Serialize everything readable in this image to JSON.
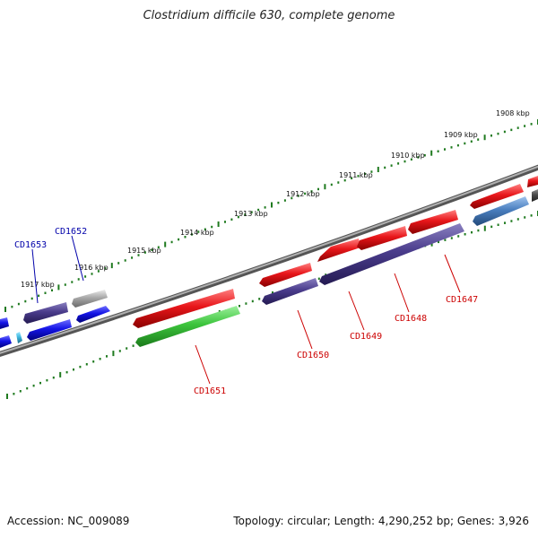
{
  "title": "Clostridium difficile 630, complete genome",
  "footer": {
    "accession": "Accession: NC_009089",
    "summary": "Topology: circular; Length: 4,290,252 bp; Genes: 3,926"
  },
  "ruler": {
    "unit": "kbp",
    "labels": [
      "1908 kbp",
      "1909 kbp",
      "1910 kbp",
      "1911 kbp",
      "1912 kbp",
      "1913 kbp",
      "1914 kbp",
      "1915 kbp",
      "1916 kbp",
      "1917 kbp"
    ]
  },
  "gene_labels": [
    {
      "text": "CD1653",
      "color": "#0000aa"
    },
    {
      "text": "CD1652",
      "color": "#0000aa"
    },
    {
      "text": "CD1651",
      "color": "#cc0000"
    },
    {
      "text": "CD1650",
      "color": "#cc0000"
    },
    {
      "text": "CD1649",
      "color": "#cc0000"
    },
    {
      "text": "CD1648",
      "color": "#cc0000"
    },
    {
      "text": "CD1647",
      "color": "#cc0000"
    }
  ],
  "colors": {
    "backbone": "#808080",
    "ticks": "#1f7a1f",
    "gene_red": "#e8161a",
    "gene_purple": "#4a3c8c",
    "gene_green": "#3cc43c",
    "gene_blue": "#1414e6",
    "gene_steel": "#4a7fbf",
    "gene_gray": "#a8a8a8",
    "gene_cyan": "#40b8e0"
  }
}
